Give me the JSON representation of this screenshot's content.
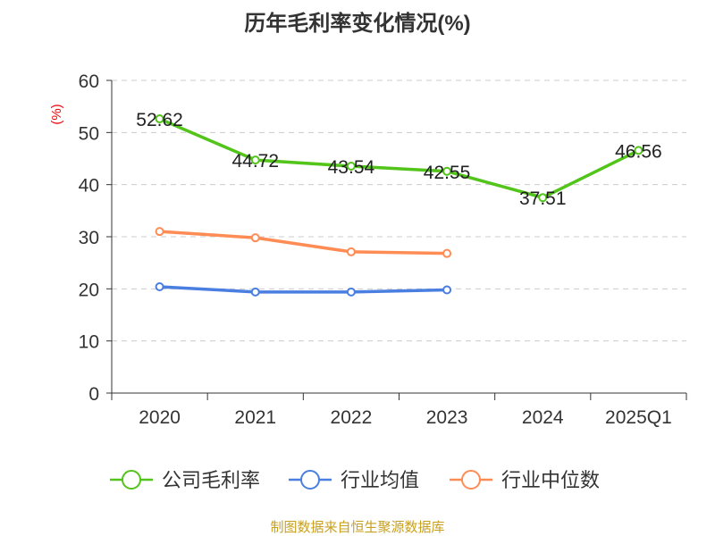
{
  "chart_data": {
    "type": "line",
    "title": "历年毛利率变化情况(%)",
    "ylabel": "(%)",
    "xlabel": "",
    "categories": [
      "2020",
      "2021",
      "2022",
      "2023",
      "2024",
      "2025Q1"
    ],
    "ylim": [
      0,
      60
    ],
    "yticks": [
      "0",
      "10",
      "20",
      "30",
      "40",
      "50",
      "60"
    ],
    "grid": true,
    "legend_position": "bottom",
    "series": [
      {
        "name": "公司毛利率",
        "color": "#52c41a",
        "values": [
          52.62,
          44.72,
          43.54,
          42.55,
          37.51,
          46.56
        ],
        "labels": [
          "52.62",
          "44.72",
          "43.54",
          "42.55",
          "37.51",
          "46.56"
        ]
      },
      {
        "name": "行业均值",
        "color": "#4a7ee0",
        "values": [
          20.4,
          19.4,
          19.4,
          19.8,
          null,
          null
        ]
      },
      {
        "name": "行业中位数",
        "color": "#ff8c55",
        "values": [
          31.0,
          29.8,
          27.1,
          26.8,
          null,
          null
        ]
      }
    ]
  },
  "footer": {
    "source": "制图数据来自恒生聚源数据库"
  }
}
